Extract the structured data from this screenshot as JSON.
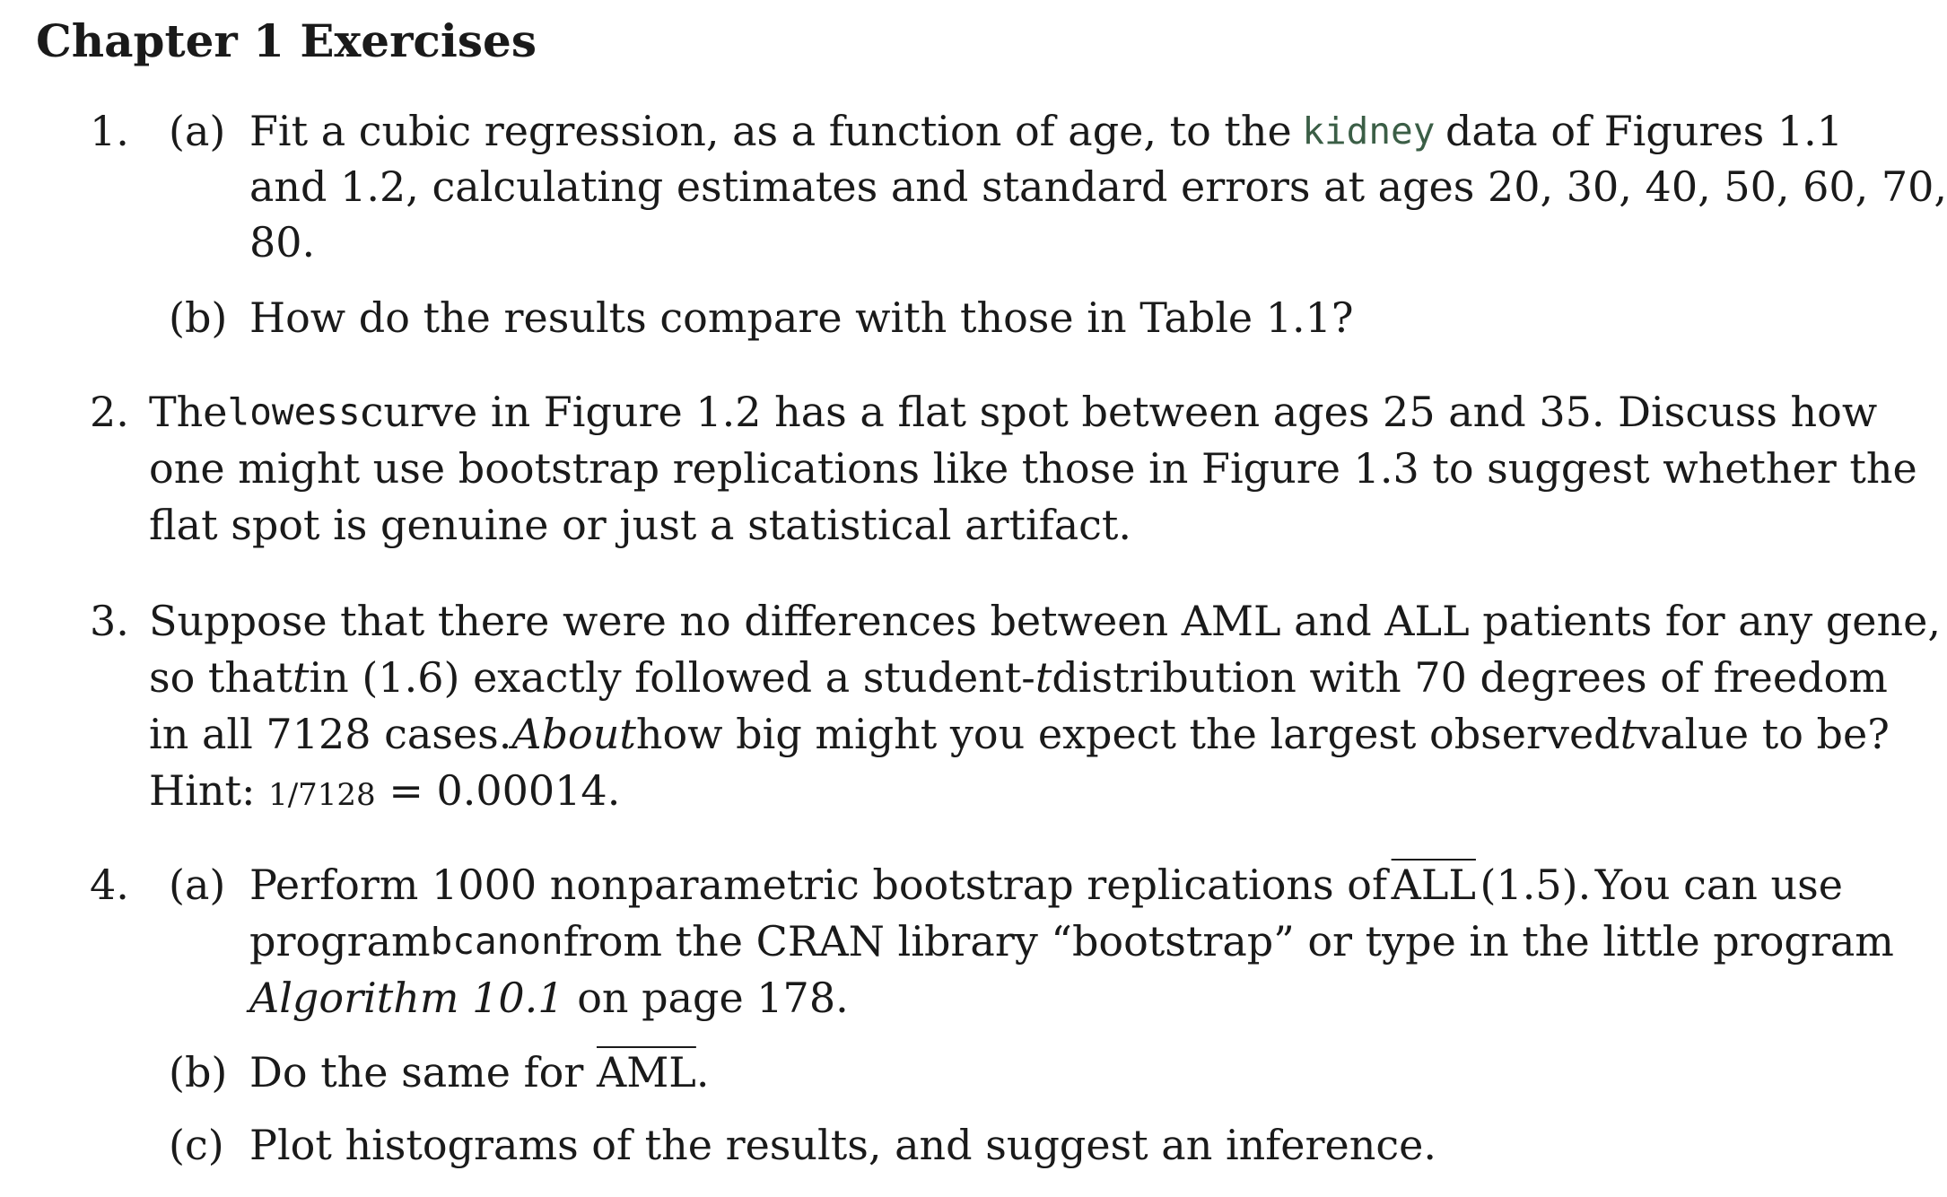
{
  "title": "Chapter 1 Exercises",
  "exercises": {
    "e1": {
      "number": "1.",
      "a": {
        "label": "(a)",
        "l1_1": "Fit a cubic regression, as a function of age, to the",
        "l1_code": "kidney",
        "l1_2": "data of Figures 1.1",
        "l2": "and 1.2, calculating estimates and standard errors at ages 20, 30, 40, 50, 60, 70,",
        "l3": "80."
      },
      "b": {
        "label": "(b)",
        "text": "How do the results compare with those in Table 1.1?"
      }
    },
    "e2": {
      "number": "2.",
      "l1_1": "The",
      "l1_code": "lowess",
      "l1_2": "curve in Figure 1.2 has a flat spot between ages 25 and 35. Discuss how",
      "l2": "one might use bootstrap replications like those in Figure 1.3 to suggest whether the",
      "l3": "flat spot is genuine or just a statistical artifact."
    },
    "e3": {
      "number": "3.",
      "l1": "Suppose that there were no differences between AML and ALL patients for any gene,",
      "l2_1": "so that",
      "l2_t": "t",
      "l2_2": "in (1.6) exactly followed a student-",
      "l2_t2": "t",
      "l2_3": "distribution with 70 degrees of freedom",
      "l3_1": "in all 7128 cases.",
      "l3_ital": "About",
      "l3_2": "how big might you expect the largest observed",
      "l3_t": "t",
      "l3_3": "value to be?",
      "l4_1": "Hint:",
      "l4_frac": "1/7128",
      "l4_2": "= 0.00014."
    },
    "e4": {
      "number": "4.",
      "a": {
        "label": "(a)",
        "l1_1": "Perform 1000 nonparametric bootstrap replications of",
        "l1_over": "ALL",
        "l1_2": "(1.5).",
        "l1_3": "You can use",
        "l2_1": "program",
        "l2_code": "bcanon",
        "l2_2": "from the CRAN library “bootstrap” or type in the little program",
        "l3_ital": "Algorithm 10.1",
        "l3_2": "on page 178."
      },
      "b": {
        "label": "(b)",
        "text_1": "Do the same for",
        "text_over": "AML",
        "text_2": "."
      },
      "c": {
        "label": "(c)",
        "text": "Plot histograms of the results, and suggest an inference."
      }
    }
  }
}
